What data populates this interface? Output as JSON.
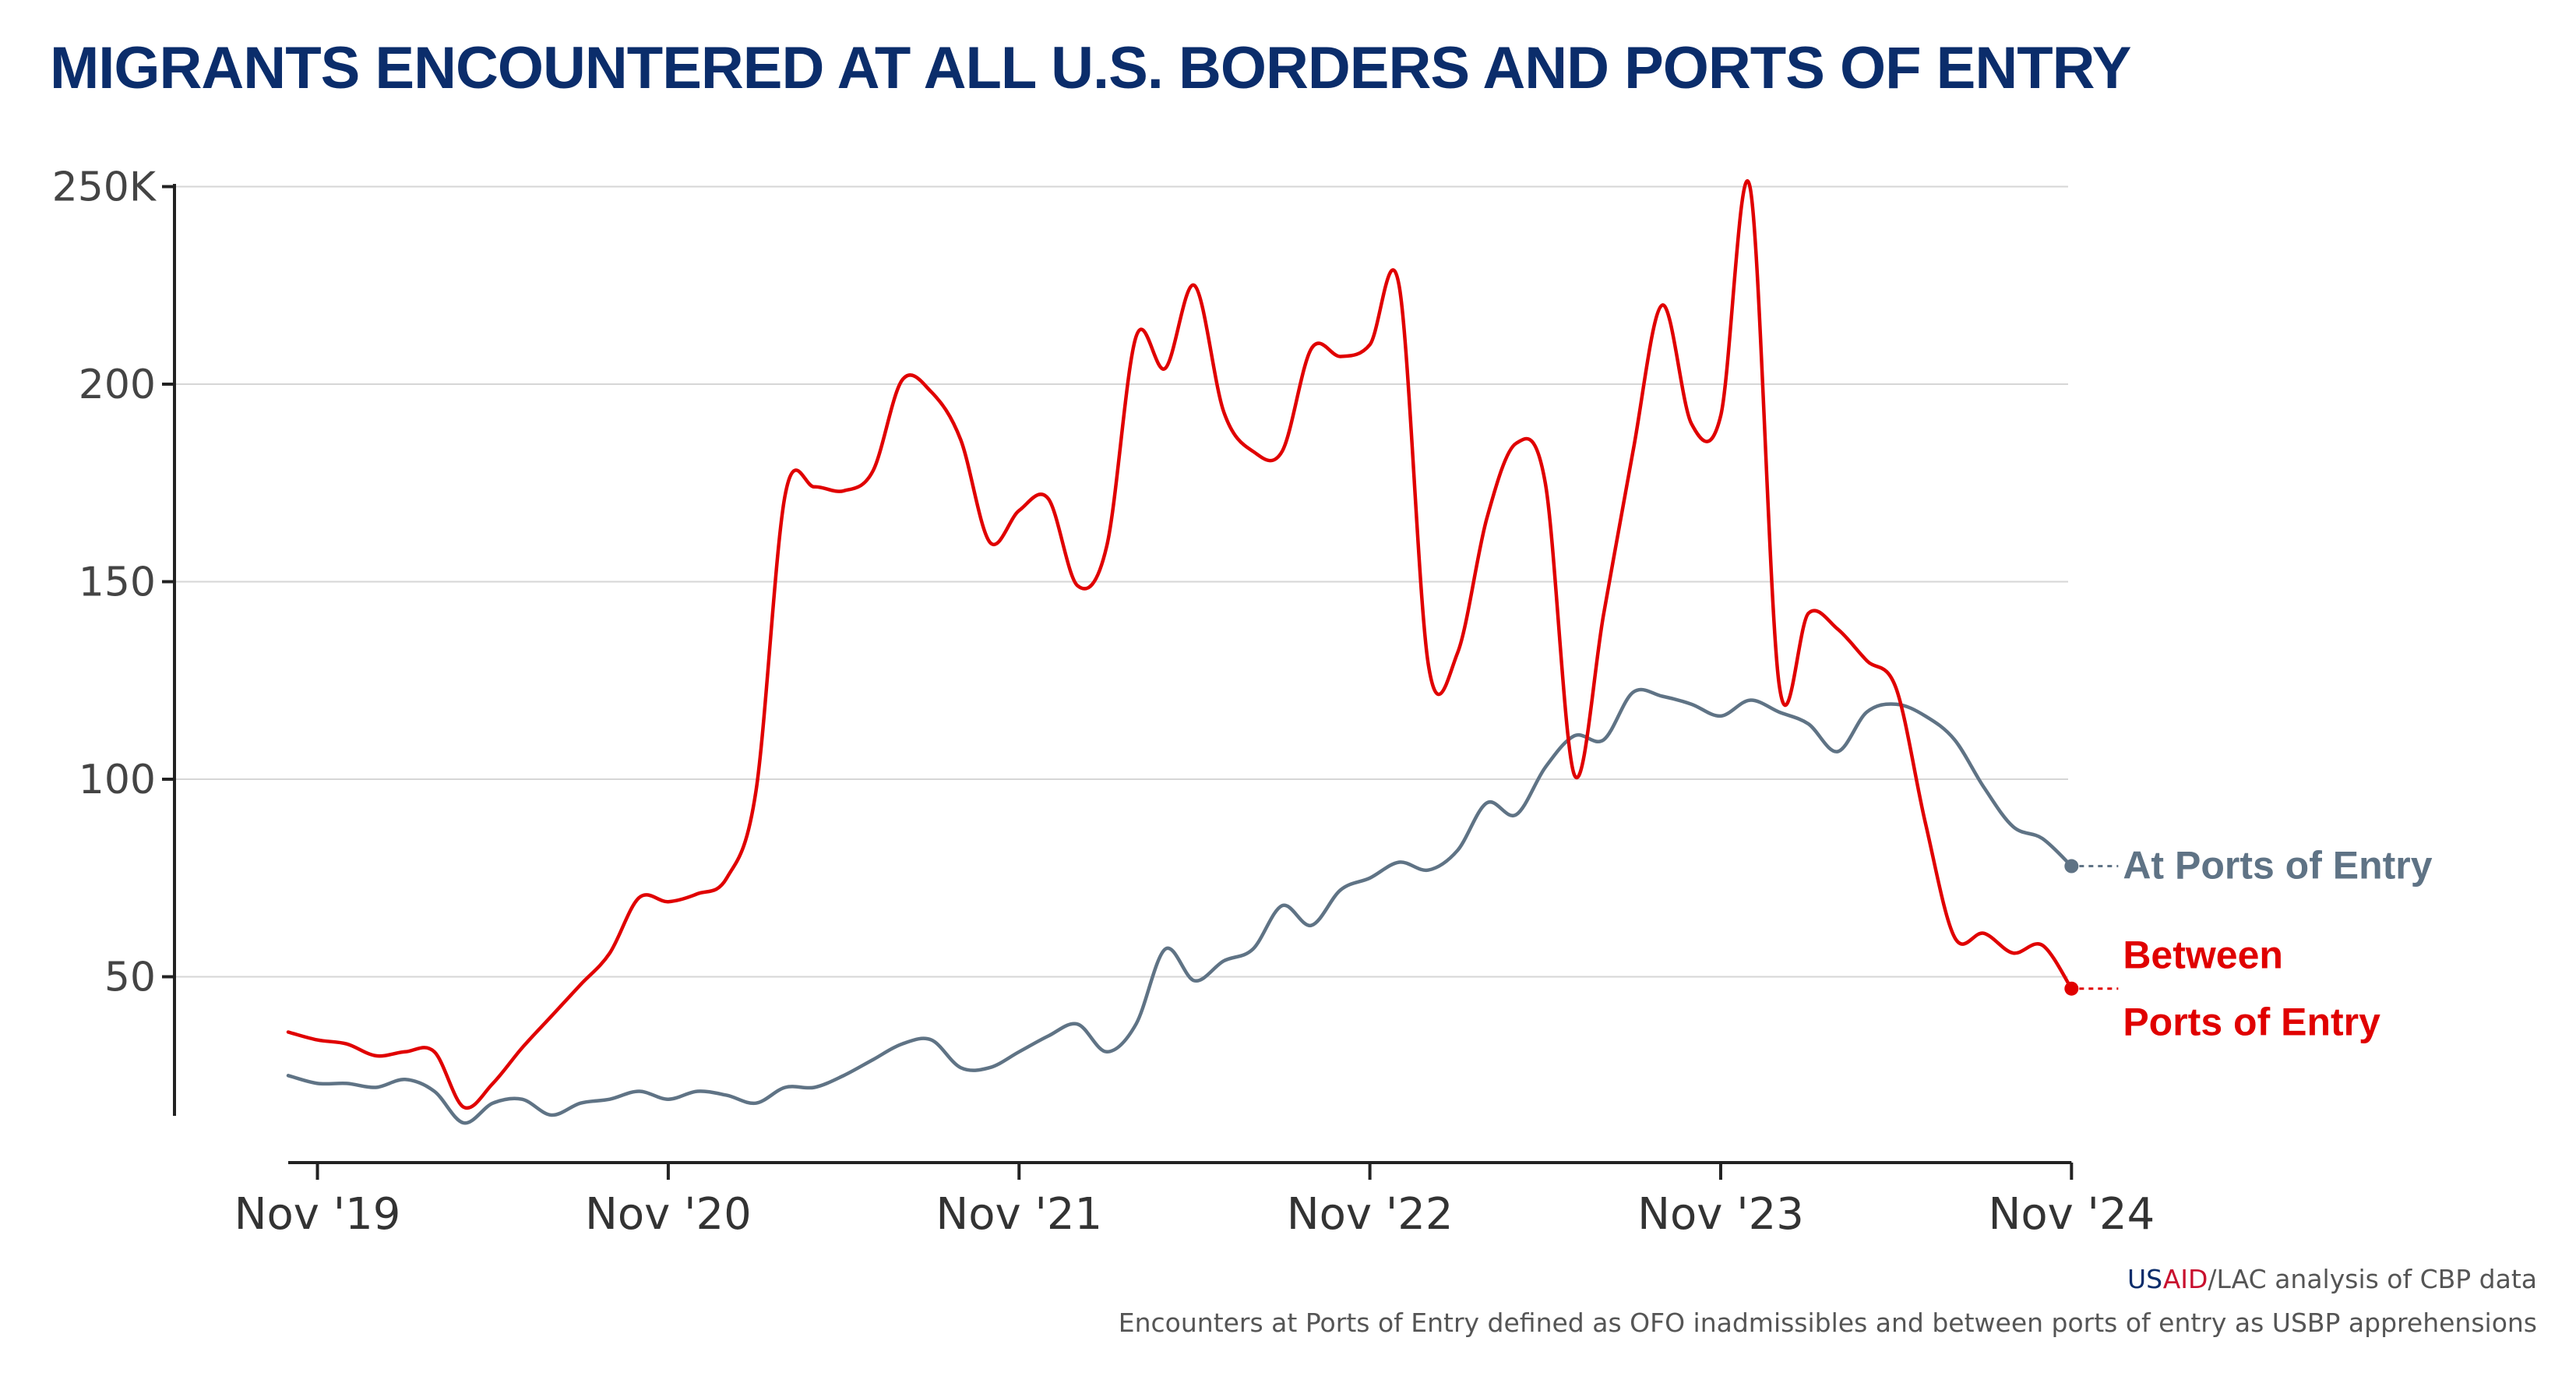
{
  "chart_data": {
    "type": "line",
    "title": "MIGRANTS ENCOUNTERED AT ALL U.S. BORDERS AND PORTS OF ENTRY",
    "xlabel": "",
    "ylabel": "",
    "ylim": [
      0,
      250
    ],
    "y_ticks": [
      {
        "value": 50,
        "label": "50"
      },
      {
        "value": 100,
        "label": "100"
      },
      {
        "value": 150,
        "label": "150"
      },
      {
        "value": 200,
        "label": "200"
      },
      {
        "value": 250,
        "label": "250K"
      }
    ],
    "x_ticks": [
      {
        "value": "2019-11",
        "label": "Nov '19"
      },
      {
        "value": "2020-11",
        "label": "Nov '20"
      },
      {
        "value": "2021-11",
        "label": "Nov '21"
      },
      {
        "value": "2022-11",
        "label": "Nov '22"
      },
      {
        "value": "2023-11",
        "label": "Nov '23"
      },
      {
        "value": "2024-11",
        "label": "Nov '24"
      }
    ],
    "grid": true,
    "x": [
      "2019-10",
      "2019-11",
      "2019-12",
      "2020-01",
      "2020-02",
      "2020-03",
      "2020-04",
      "2020-05",
      "2020-06",
      "2020-07",
      "2020-08",
      "2020-09",
      "2020-10",
      "2020-11",
      "2020-12",
      "2021-01",
      "2021-02",
      "2021-03",
      "2021-04",
      "2021-05",
      "2021-06",
      "2021-07",
      "2021-08",
      "2021-09",
      "2021-10",
      "2021-11",
      "2021-12",
      "2022-01",
      "2022-02",
      "2022-03",
      "2022-04",
      "2022-05",
      "2022-06",
      "2022-07",
      "2022-08",
      "2022-09",
      "2022-10",
      "2022-11",
      "2022-12",
      "2023-01",
      "2023-02",
      "2023-03",
      "2023-04",
      "2023-05",
      "2023-06",
      "2023-07",
      "2023-08",
      "2023-09",
      "2023-10",
      "2023-11",
      "2023-12",
      "2024-01",
      "2024-02",
      "2024-03",
      "2024-04",
      "2024-05",
      "2024-06",
      "2024-07",
      "2024-08",
      "2024-09",
      "2024-10",
      "2024-11"
    ],
    "series": [
      {
        "name": "Between Ports of Entry",
        "label_lines": [
          "Between",
          "Ports of Entry"
        ],
        "color": "#e00000",
        "values": [
          36,
          34,
          33,
          30,
          31,
          31,
          17,
          23,
          32,
          40,
          48,
          56,
          70,
          69,
          71,
          75,
          97,
          172,
          174,
          173,
          178,
          201,
          198,
          186,
          160,
          168,
          171,
          149,
          159,
          212,
          204,
          225,
          193,
          183,
          183,
          209,
          207,
          210,
          225,
          129,
          132,
          166,
          185,
          175,
          101,
          142,
          183,
          220,
          190,
          192,
          250,
          124,
          142,
          138,
          130,
          123,
          89,
          60,
          61,
          56,
          58,
          47
        ]
      },
      {
        "name": "At Ports of Entry",
        "label_lines": [
          "At Ports of Entry"
        ],
        "color": "#5f7385",
        "values": [
          25,
          23,
          23,
          22,
          24,
          21,
          13,
          18,
          19,
          15,
          18,
          19,
          21,
          19,
          21,
          20,
          18,
          22,
          22,
          25,
          29,
          33,
          34,
          27,
          27,
          31,
          35,
          38,
          31,
          38,
          57,
          49,
          54,
          57,
          68,
          63,
          72,
          75,
          79,
          77,
          82,
          94,
          91,
          103,
          111,
          110,
          122,
          121,
          119,
          116,
          120,
          117,
          114,
          107,
          117,
          119,
          116,
          110,
          98,
          88,
          85,
          78
        ]
      }
    ]
  },
  "source": {
    "org_us": "US",
    "org_aid": "AID",
    "rest": "/LAC analysis of CBP data"
  },
  "note": "Encounters at Ports of Entry defined as OFO inadmissibles and between ports of entry as USBP apprehensions"
}
